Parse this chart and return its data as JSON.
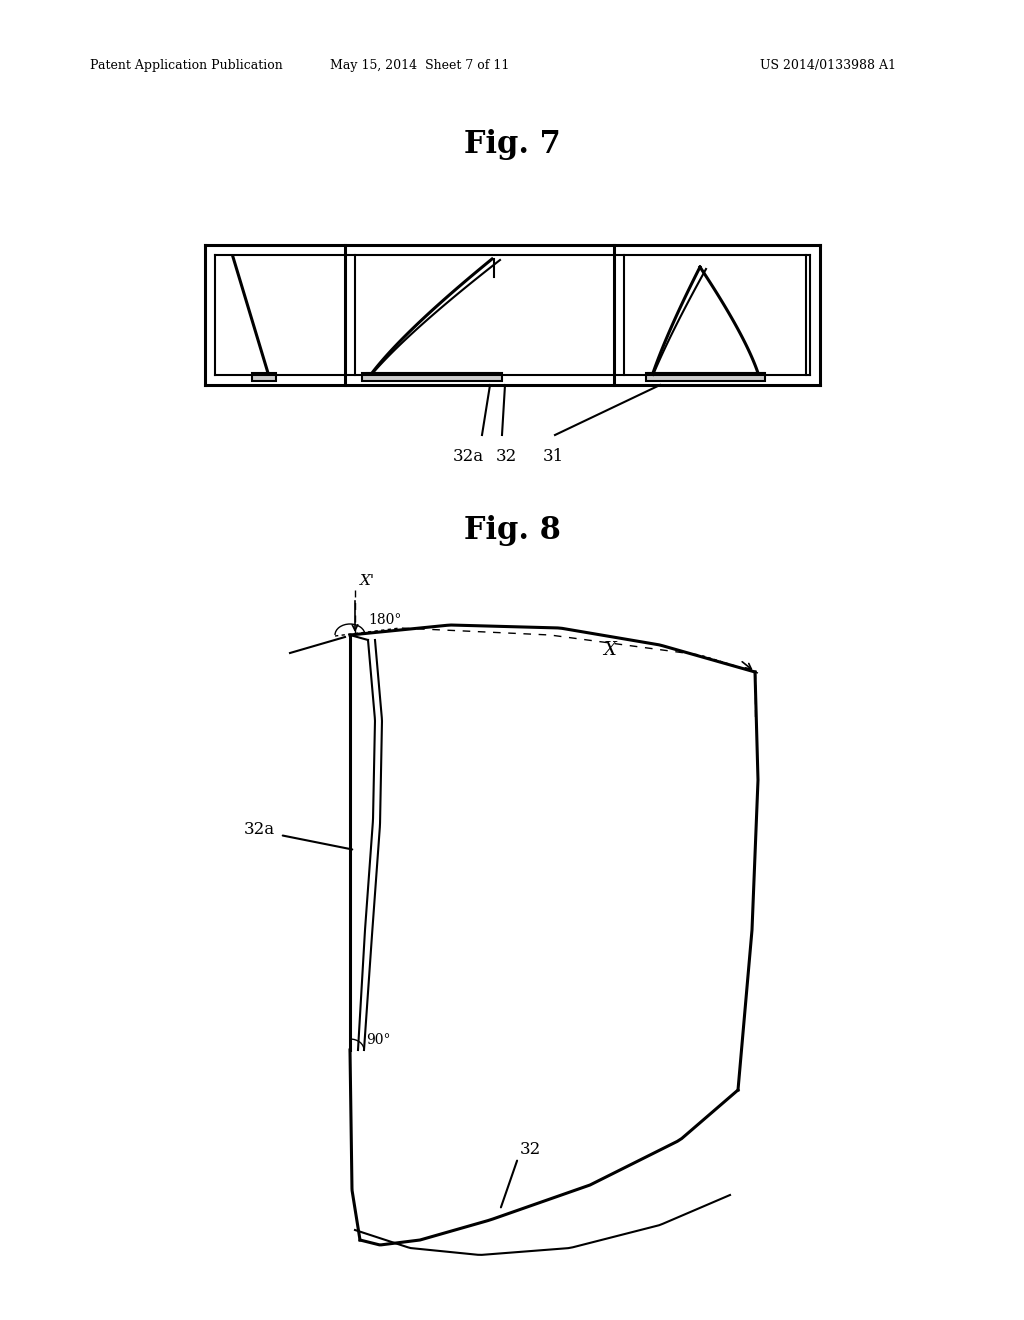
{
  "background_color": "#ffffff",
  "header_left": "Patent Application Publication",
  "header_center": "May 15, 2014  Sheet 7 of 11",
  "header_right": "US 2014/0133988 A1",
  "fig7_title": "Fig. 7",
  "fig8_title": "Fig. 8",
  "label_32a": "32a",
  "label_32": "32",
  "label_31": "31",
  "label_32a_fig8": "32a",
  "label_32_fig8": "32",
  "label_x": "X",
  "label_xprime": "X'",
  "label_180": "180°",
  "label_90": "90°"
}
